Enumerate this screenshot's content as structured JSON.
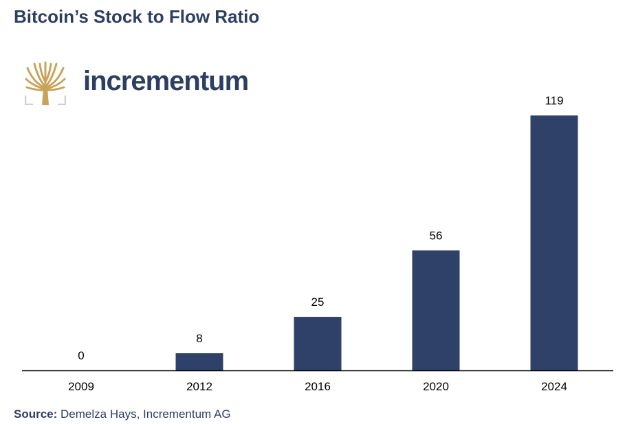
{
  "header": {
    "title": "Bitcoin’s Stock to Flow Ratio"
  },
  "logo": {
    "icon": "tree-icon",
    "name": "incrementum",
    "icon_color": "#c9a35a",
    "frame_color": "#cfcfcf"
  },
  "chart_data": {
    "type": "bar",
    "categories": [
      "2009",
      "2012",
      "2016",
      "2020",
      "2024"
    ],
    "values": [
      0,
      8,
      25,
      56,
      119
    ],
    "data_labels": [
      "0",
      "8",
      "25",
      "56",
      "119"
    ],
    "title": "Bitcoin’s Stock to Flow Ratio",
    "xlabel": "",
    "ylabel": "",
    "ylim": [
      0,
      119
    ],
    "grid": false,
    "bar_color": "#2f4169",
    "axis_color": "#000000"
  },
  "footer": {
    "source_label": "Source:",
    "source_text": "Demelza Hays, Incrementum AG"
  }
}
